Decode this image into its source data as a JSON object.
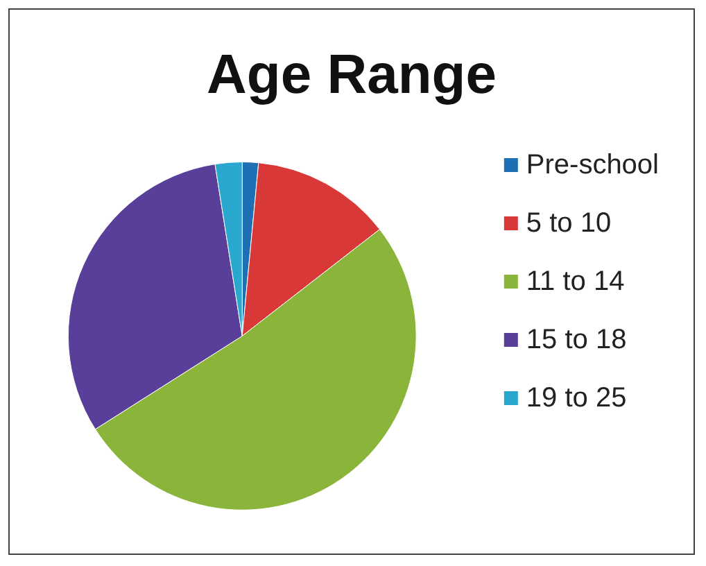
{
  "chart_data": {
    "type": "pie",
    "title": "Age Range",
    "categories": [
      "Pre-school",
      "5 to 10",
      "11 to 14",
      "15 to 18",
      "19 to 25"
    ],
    "values": [
      1.5,
      13,
      51.5,
      31.5,
      2.5
    ],
    "colors": [
      "#1f6fb4",
      "#d93838",
      "#8ab43a",
      "#5a3f9a",
      "#2aa7cf"
    ],
    "legend": "right"
  }
}
